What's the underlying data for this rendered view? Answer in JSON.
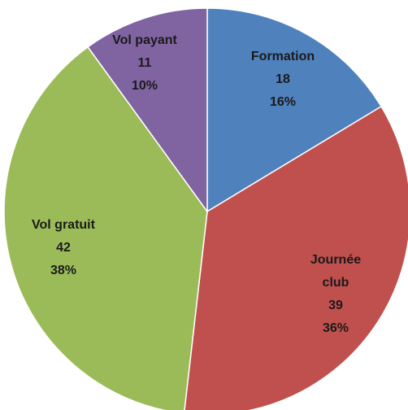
{
  "chart_data": {
    "type": "pie",
    "categories": [
      "Formation",
      "Journée club",
      "Vol gratuit",
      "Vol payant"
    ],
    "values": [
      18,
      39,
      42,
      11
    ],
    "percent_labels": [
      "16%",
      "36%",
      "38%",
      "10%"
    ],
    "colors": [
      "#4f81bd",
      "#c0504d",
      "#9bbb59",
      "#8064a2"
    ]
  }
}
